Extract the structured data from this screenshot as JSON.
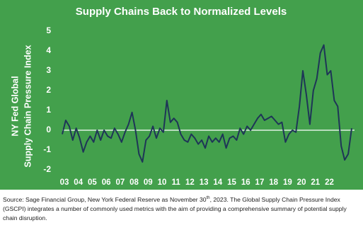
{
  "chart_data": {
    "type": "line",
    "title": "Supply Chains Back to Normalized Levels",
    "y_label": [
      "NY Fed Global",
      "Supply Chain Pressure Index"
    ],
    "background": "#43a04c",
    "series": [
      {
        "name": "GSCPI",
        "color": "#1e3557",
        "x": [
          2003,
          2003.25,
          2003.5,
          2003.75,
          2004,
          2004.25,
          2004.5,
          2004.75,
          2005,
          2005.25,
          2005.5,
          2005.75,
          2006,
          2006.25,
          2006.5,
          2006.75,
          2007,
          2007.25,
          2007.5,
          2007.75,
          2008,
          2008.25,
          2008.5,
          2008.75,
          2009,
          2009.25,
          2009.5,
          2009.75,
          2010,
          2010.25,
          2010.5,
          2010.75,
          2011,
          2011.25,
          2011.5,
          2011.75,
          2012,
          2012.25,
          2012.5,
          2012.75,
          2013,
          2013.25,
          2013.5,
          2013.75,
          2014,
          2014.25,
          2014.5,
          2014.75,
          2015,
          2015.25,
          2015.5,
          2015.75,
          2016,
          2016.25,
          2016.5,
          2016.75,
          2017,
          2017.25,
          2017.5,
          2017.75,
          2018,
          2018.25,
          2018.5,
          2018.75,
          2019,
          2019.25,
          2019.5,
          2019.75,
          2020,
          2020.25,
          2020.5,
          2020.75,
          2021,
          2021.25,
          2021.5,
          2021.75,
          2022,
          2022.25,
          2022.5,
          2022.75,
          2023,
          2023.25,
          2023.5,
          2023.75
        ],
        "values": [
          -0.2,
          0.5,
          0.2,
          -0.5,
          0.1,
          -0.4,
          -1.1,
          -0.6,
          -0.3,
          -0.6,
          0.0,
          -0.5,
          0.0,
          -0.3,
          -0.4,
          0.1,
          -0.2,
          -0.6,
          -0.1,
          0.3,
          0.9,
          0.0,
          -1.2,
          -1.6,
          -0.5,
          -0.3,
          0.2,
          -0.4,
          0.1,
          -0.1,
          1.5,
          0.4,
          0.6,
          0.4,
          -0.2,
          -0.5,
          -0.6,
          -0.2,
          -0.4,
          -0.7,
          -0.5,
          -0.9,
          -0.3,
          -0.6,
          -0.4,
          -0.6,
          -0.2,
          -0.9,
          -0.4,
          -0.3,
          -0.5,
          0.1,
          -0.2,
          0.2,
          0.0,
          0.3,
          0.6,
          0.8,
          0.5,
          0.6,
          0.7,
          0.5,
          0.3,
          0.4,
          -0.6,
          -0.2,
          0.0,
          -0.1,
          1.2,
          3.0,
          1.8,
          0.3,
          2.0,
          2.6,
          3.9,
          4.3,
          2.8,
          3.0,
          1.5,
          1.2,
          -0.8,
          -1.5,
          -1.2,
          0.1
        ]
      }
    ],
    "xlim": [
      2003,
      2023.75
    ],
    "xticks": [
      {
        "value": 2003,
        "label": "03"
      },
      {
        "value": 2004,
        "label": "04"
      },
      {
        "value": 2005,
        "label": "05"
      },
      {
        "value": 2006,
        "label": "06"
      },
      {
        "value": 2007,
        "label": "07"
      },
      {
        "value": 2008,
        "label": "08"
      },
      {
        "value": 2009,
        "label": "09"
      },
      {
        "value": 2010,
        "label": "10"
      },
      {
        "value": 2011,
        "label": "11"
      },
      {
        "value": 2012,
        "label": "12"
      },
      {
        "value": 2013,
        "label": "13"
      },
      {
        "value": 2014,
        "label": "14"
      },
      {
        "value": 2015,
        "label": "15"
      },
      {
        "value": 2016,
        "label": "16"
      },
      {
        "value": 2017,
        "label": "17"
      },
      {
        "value": 2018,
        "label": "18"
      },
      {
        "value": 2019,
        "label": "19"
      },
      {
        "value": 2020,
        "label": "20"
      },
      {
        "value": 2021,
        "label": "21"
      },
      {
        "value": 2022,
        "label": "22"
      }
    ],
    "ylim": [
      -2,
      5
    ],
    "yticks": [
      -2,
      -1,
      0,
      1,
      2,
      3,
      4,
      5
    ],
    "zero_line": true,
    "note": [
      "Source: Sage Financial Group, New York Federal Reserve as November 30",
      "th",
      ", 2023. The Global Supply Chain Pressure Index (GSCPI) integrates a number of commonly used metrics with the aim of providing a comprehensive summary of potential supply chain disruption."
    ]
  }
}
